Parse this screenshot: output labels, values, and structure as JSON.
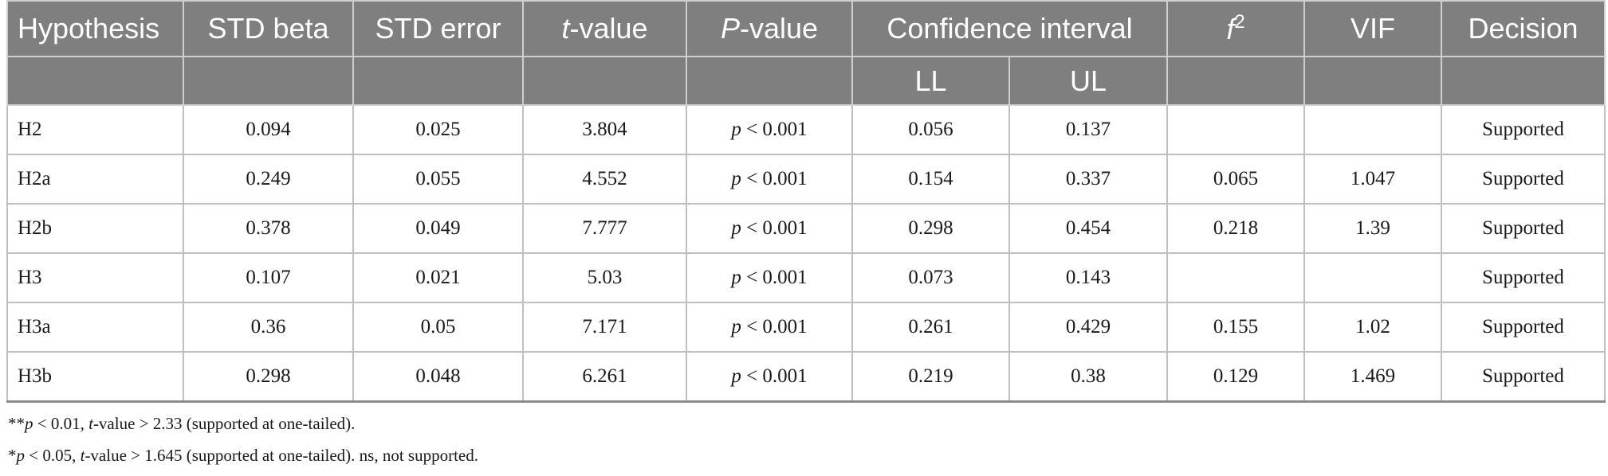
{
  "table": {
    "headers": {
      "hypothesis": "Hypothesis",
      "std_beta": "STD beta",
      "std_error": "STD error",
      "t_italic": "t",
      "t_rest": "-value",
      "p_italic": "P",
      "p_rest": "-value",
      "ci": "Confidence interval",
      "f2_base": "f",
      "f2_sup": "2",
      "vif": "VIF",
      "decision": "Decision",
      "ll": "LL",
      "ul": "UL"
    },
    "rows": [
      {
        "hypothesis": "H2",
        "std_beta": "0.094",
        "std_error": "0.025",
        "t_value": "3.804",
        "p_sym": "p",
        "p_rest": " < 0.001",
        "ll": "0.056",
        "ul": "0.137",
        "f2": "",
        "vif": "",
        "decision": "Supported"
      },
      {
        "hypothesis": "H2a",
        "std_beta": "0.249",
        "std_error": "0.055",
        "t_value": "4.552",
        "p_sym": "p",
        "p_rest": " < 0.001",
        "ll": "0.154",
        "ul": "0.337",
        "f2": "0.065",
        "vif": "1.047",
        "decision": "Supported"
      },
      {
        "hypothesis": "H2b",
        "std_beta": "0.378",
        "std_error": "0.049",
        "t_value": "7.777",
        "p_sym": "p",
        "p_rest": " < 0.001",
        "ll": "0.298",
        "ul": "0.454",
        "f2": "0.218",
        "vif": "1.39",
        "decision": "Supported"
      },
      {
        "hypothesis": "H3",
        "std_beta": "0.107",
        "std_error": "0.021",
        "t_value": "5.03",
        "p_sym": "p",
        "p_rest": " < 0.001",
        "ll": "0.073",
        "ul": "0.143",
        "f2": "",
        "vif": "",
        "decision": "Supported"
      },
      {
        "hypothesis": "H3a",
        "std_beta": "0.36",
        "std_error": "0.05",
        "t_value": "7.171",
        "p_sym": "p",
        "p_rest": " < 0.001",
        "ll": "0.261",
        "ul": "0.429",
        "f2": "0.155",
        "vif": "1.02",
        "decision": "Supported"
      },
      {
        "hypothesis": "H3b",
        "std_beta": "0.298",
        "std_error": "0.048",
        "t_value": "6.261",
        "p_sym": "p",
        "p_rest": " < 0.001",
        "ll": "0.219",
        "ul": "0.38",
        "f2": "0.129",
        "vif": "1.469",
        "decision": "Supported"
      }
    ]
  },
  "notes": {
    "note1": {
      "stars": "**",
      "p": "p",
      "mid": " < 0.01, ",
      "t": "t",
      "rest": "-value > 2.33 (supported at one-tailed)."
    },
    "note2": {
      "stars": "*",
      "p": "p",
      "mid": " < 0.05, ",
      "t": "t",
      "rest": "-value > 1.645 (supported at one-tailed). ns, not supported."
    }
  }
}
